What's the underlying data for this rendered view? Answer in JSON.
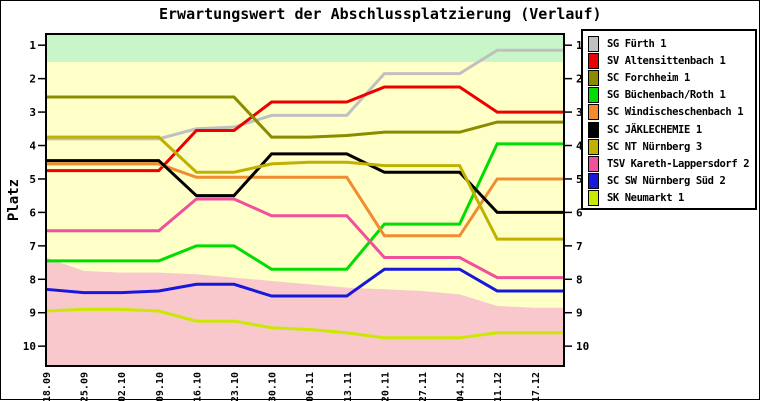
{
  "title": "Erwartungswert der Abschlussplatzierung (Verlauf)",
  "y_axis_label": "Platz",
  "chart_data": {
    "type": "line",
    "title": "Erwartungswert der Abschlussplatzierung (Verlauf)",
    "ylabel": "Platz",
    "y_inverted": true,
    "ylim": [
      0.65,
      10.6
    ],
    "yticks": [
      1,
      2,
      3,
      4,
      5,
      6,
      7,
      8,
      9,
      10
    ],
    "grid": false,
    "legend_position": "right",
    "x_labels": [
      "18.09",
      "25.09",
      "02.10",
      "09.10",
      "16.10",
      "23.10",
      "30.10",
      "06.11",
      "13.11",
      "20.11",
      "27.11",
      "04.12",
      "11.12",
      "17.12"
    ],
    "series": [
      {
        "name": "SG Fürth 1",
        "color": "#c0c0c0",
        "values": [
          3.8,
          3.8,
          3.8,
          3.8,
          3.5,
          3.45,
          3.1,
          3.1,
          3.1,
          1.85,
          1.85,
          1.85,
          1.15,
          1.15
        ]
      },
      {
        "name": "SV Altensittenbach 1",
        "color": "#ee0000",
        "values": [
          4.75,
          4.75,
          4.75,
          4.75,
          3.55,
          3.55,
          2.7,
          2.7,
          2.7,
          2.25,
          2.25,
          2.25,
          3.0,
          3.0
        ]
      },
      {
        "name": "SC Forchheim 1",
        "color": "#8b8b00",
        "values": [
          2.55,
          2.55,
          2.55,
          2.55,
          2.55,
          2.55,
          3.75,
          3.75,
          3.7,
          3.6,
          3.6,
          3.6,
          3.3,
          3.3
        ]
      },
      {
        "name": "SG Büchenbach/Roth 1",
        "color": "#00dd00",
        "values": [
          7.45,
          7.45,
          7.45,
          7.45,
          7.0,
          7.0,
          7.7,
          7.7,
          7.7,
          6.35,
          6.35,
          6.35,
          3.95,
          3.95
        ]
      },
      {
        "name": "SC Windischeschenbach 1",
        "color": "#f28c30",
        "values": [
          4.55,
          4.55,
          4.55,
          4.55,
          4.95,
          4.95,
          4.95,
          4.95,
          4.95,
          6.7,
          6.7,
          6.7,
          5.0,
          5.0
        ]
      },
      {
        "name": "SC JÄKLECHEMIE 1",
        "color": "#000000",
        "values": [
          4.45,
          4.45,
          4.45,
          4.45,
          5.5,
          5.5,
          4.25,
          4.25,
          4.25,
          4.8,
          4.8,
          4.8,
          6.0,
          6.0
        ]
      },
      {
        "name": "SC NT Nürnberg 3",
        "color": "#c0b000",
        "values": [
          3.75,
          3.75,
          3.75,
          3.75,
          4.8,
          4.8,
          4.55,
          4.5,
          4.5,
          4.6,
          4.6,
          4.6,
          6.8,
          6.8
        ]
      },
      {
        "name": "TSV Kareth-Lappersdorf 2",
        "color": "#f0509c",
        "values": [
          6.55,
          6.55,
          6.55,
          6.55,
          5.6,
          5.6,
          6.1,
          6.1,
          6.1,
          7.35,
          7.35,
          7.35,
          7.95,
          7.95
        ]
      },
      {
        "name": "SC SW Nürnberg Süd 2",
        "color": "#1818dd",
        "values": [
          8.3,
          8.4,
          8.4,
          8.35,
          8.15,
          8.15,
          8.5,
          8.5,
          8.5,
          7.7,
          7.7,
          7.7,
          8.35,
          8.35
        ]
      },
      {
        "name": "SK Neumarkt 1",
        "color": "#cbe800",
        "values": [
          8.95,
          8.9,
          8.9,
          8.95,
          9.25,
          9.25,
          9.45,
          9.5,
          9.6,
          9.75,
          9.75,
          9.75,
          9.6,
          9.6
        ]
      }
    ],
    "bands": {
      "promotion": {
        "color": "#c8f6c8",
        "from": 0.65,
        "to": 1.5
      },
      "neutral": {
        "color": "#ffffc8"
      },
      "relegation": {
        "color": "#f8c8cc",
        "to": 10.6,
        "top_boundary_by_date": [
          7.35,
          7.75,
          7.8,
          7.8,
          7.85,
          7.95,
          8.05,
          8.15,
          8.25,
          8.3,
          8.35,
          8.45,
          8.8,
          8.85
        ]
      }
    }
  }
}
